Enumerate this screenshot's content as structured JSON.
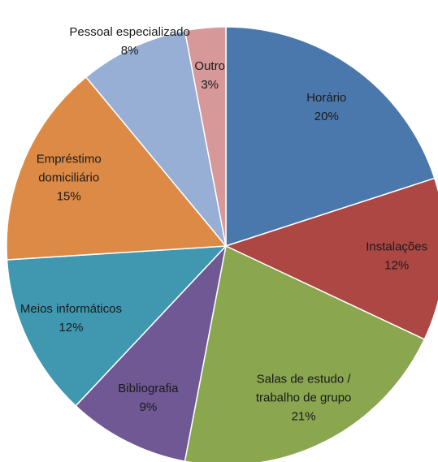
{
  "chart_data": {
    "type": "pie",
    "categories": [
      "Horário",
      "Instalações",
      "Salas de estudo /\ntrabalho de grupo",
      "Bibliografia",
      "Meios informáticos",
      "Empréstimo\ndomiciliário",
      "Pessoal especializado",
      "Outro"
    ],
    "values": [
      20,
      12,
      21,
      9,
      12,
      15,
      8,
      3
    ],
    "value_labels": [
      "20%",
      "12%",
      "21%",
      "9%",
      "12%",
      "15%",
      "8%",
      "3%"
    ],
    "colors": [
      "#4a78ad",
      "#ad4744",
      "#8aa64f",
      "#6f5893",
      "#4098b0",
      "#dd8a46",
      "#97aed5",
      "#d69898"
    ]
  }
}
